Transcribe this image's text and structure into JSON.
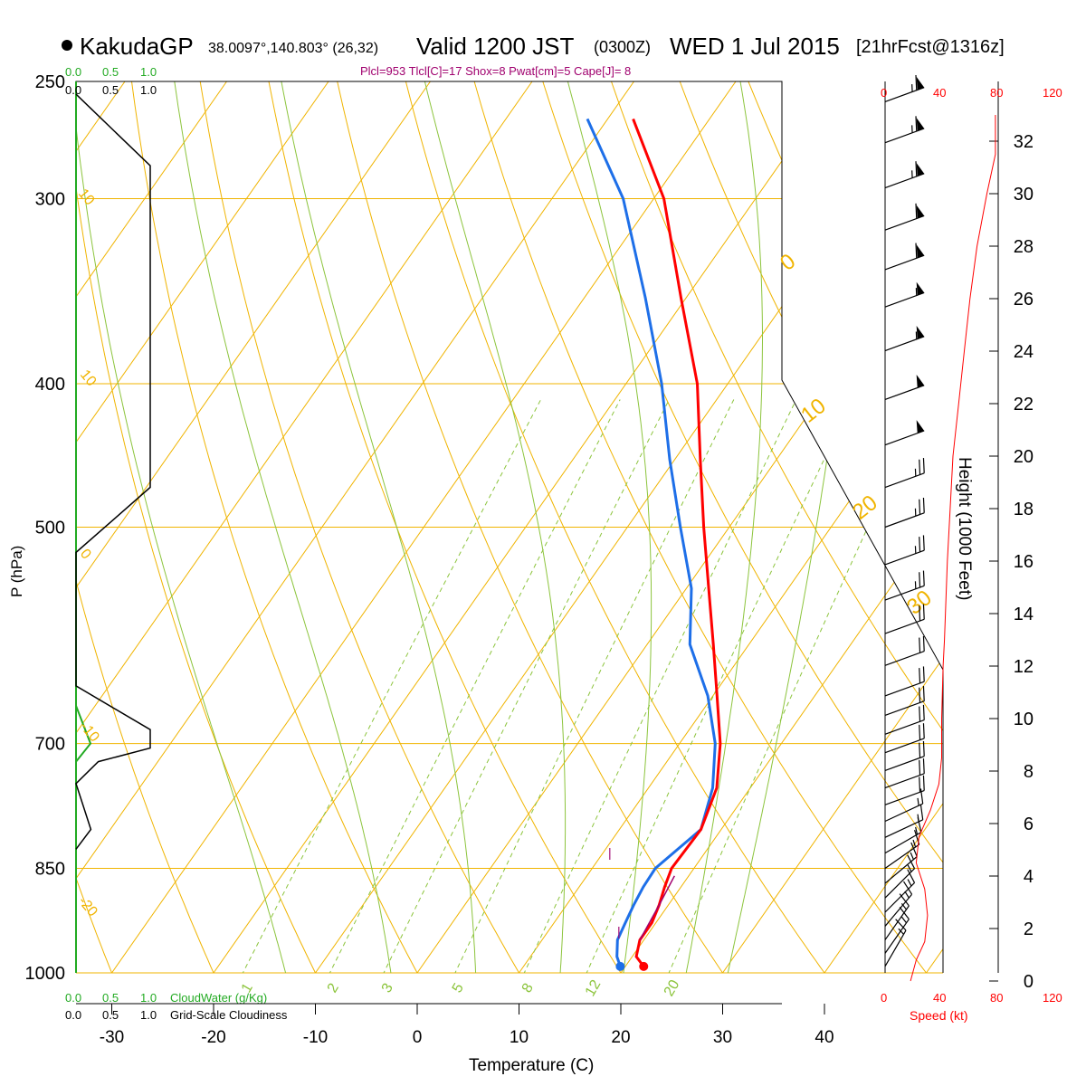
{
  "header": {
    "station": "KakudaGP",
    "location": "38.0097°,140.803° (26,32)",
    "valid": "Valid 1200 JST",
    "zulu": "(0300Z)",
    "date": "WED 1 Jul 2015",
    "forecast": "[21hrFcst@1316z]",
    "indices": "Plcl=953 Tlcl[C]=17 Shox=8 Pwat[cm]=5 Cape[J]= 8"
  },
  "colors": {
    "temperature": "#ff0000",
    "dewpoint": "#1e6fe8",
    "parcel": "#a0006e",
    "isotherm": "#f0b400",
    "dry_adiabat": "#f0b400",
    "moist_adiabat": "#8cc43c",
    "mixing_ratio": "#8cc43c",
    "cloud_water": "#22aa22",
    "cloudiness": "#000000",
    "wind_speed": "#ff0000",
    "indices_text": "#a0006e"
  },
  "chart_data": {
    "type": "skew-t",
    "xlabel": "Temperature (C)",
    "ylabel": "P (hPa)",
    "right_label": "Height (1000 Feet)",
    "x_ticks": [
      -30,
      -20,
      -10,
      0,
      10,
      20,
      30,
      40
    ],
    "p_ticks": [
      250,
      300,
      400,
      500,
      700,
      850,
      1000
    ],
    "height_ticks": [
      0,
      2,
      4,
      6,
      8,
      10,
      12,
      14,
      16,
      18,
      20,
      22,
      24,
      26,
      28,
      30,
      32
    ],
    "pressure_range": [
      250,
      1000
    ],
    "speed_ticks": [
      "0",
      "40",
      "80",
      "120"
    ],
    "speed_label": "Speed (kt)",
    "cloud_ticks": [
      "0.0",
      "0.5",
      "1.0"
    ],
    "cloud_water_label": "CloudWater (g/Kg)",
    "cloudiness_label": "Grid-Scale Cloudiness",
    "isotherm_labels": [
      "10",
      "0",
      "-10",
      "-20",
      "-30"
    ],
    "theta_labels": [
      "0",
      "10",
      "20",
      "30"
    ],
    "mixing_ratio_labels": [
      "1",
      "2",
      "3",
      "5",
      "8",
      "12",
      "20"
    ],
    "temperature": [
      {
        "p": 990,
        "t": 21.8
      },
      {
        "p": 975,
        "t": 20.4
      },
      {
        "p": 950,
        "t": 19.6
      },
      {
        "p": 925,
        "t": 19.6
      },
      {
        "p": 900,
        "t": 19.1
      },
      {
        "p": 875,
        "t": 18.4
      },
      {
        "p": 850,
        "t": 17.8
      },
      {
        "p": 800,
        "t": 18.0
      },
      {
        "p": 750,
        "t": 16.7
      },
      {
        "p": 700,
        "t": 14.0
      },
      {
        "p": 650,
        "t": 10.4
      },
      {
        "p": 600,
        "t": 6.5
      },
      {
        "p": 550,
        "t": 2.2
      },
      {
        "p": 500,
        "t": -2.5
      },
      {
        "p": 450,
        "t": -7.5
      },
      {
        "p": 400,
        "t": -13.0
      },
      {
        "p": 350,
        "t": -20.5
      },
      {
        "p": 300,
        "t": -29.0
      },
      {
        "p": 265,
        "t": -37.5
      }
    ],
    "dewpoint": [
      {
        "p": 990,
        "t": 19.5
      },
      {
        "p": 975,
        "t": 18.5
      },
      {
        "p": 950,
        "t": 17.4
      },
      {
        "p": 925,
        "t": 17.0
      },
      {
        "p": 900,
        "t": 16.6
      },
      {
        "p": 875,
        "t": 16.3
      },
      {
        "p": 850,
        "t": 16.2
      },
      {
        "p": 800,
        "t": 18.0
      },
      {
        "p": 750,
        "t": 16.3
      },
      {
        "p": 700,
        "t": 13.5
      },
      {
        "p": 650,
        "t": 9.5
      },
      {
        "p": 600,
        "t": 4.2
      },
      {
        "p": 550,
        "t": 0.5
      },
      {
        "p": 500,
        "t": -4.8
      },
      {
        "p": 450,
        "t": -10.5
      },
      {
        "p": 400,
        "t": -16.5
      },
      {
        "p": 350,
        "t": -24.0
      },
      {
        "p": 300,
        "t": -33.0
      },
      {
        "p": 265,
        "t": -42.0
      }
    ],
    "parcel": [
      {
        "p": 950,
        "t": 19.6
      },
      {
        "p": 900,
        "t": 19.1
      },
      {
        "p": 860,
        "t": 18.6
      }
    ],
    "wind_speed": [
      {
        "z": 0,
        "v": 18
      },
      {
        "z": 0.8,
        "v": 22
      },
      {
        "z": 1.5,
        "v": 28
      },
      {
        "z": 2.5,
        "v": 30
      },
      {
        "z": 3.5,
        "v": 28
      },
      {
        "z": 4.5,
        "v": 22
      },
      {
        "z": 5.5,
        "v": 24
      },
      {
        "z": 6.5,
        "v": 32
      },
      {
        "z": 7.5,
        "v": 38
      },
      {
        "z": 8.5,
        "v": 40
      },
      {
        "z": 10,
        "v": 40
      },
      {
        "z": 12,
        "v": 41
      },
      {
        "z": 13,
        "v": 42
      },
      {
        "z": 16,
        "v": 44
      },
      {
        "z": 18,
        "v": 46
      },
      {
        "z": 20,
        "v": 48
      },
      {
        "z": 22,
        "v": 52
      },
      {
        "z": 24,
        "v": 56
      },
      {
        "z": 26,
        "v": 60
      },
      {
        "z": 28,
        "v": 65
      },
      {
        "z": 30,
        "v": 72
      },
      {
        "z": 31.5,
        "v": 78
      },
      {
        "z": 33,
        "v": 78
      }
    ],
    "wind_barbs": [
      {
        "p": 990,
        "dir": 210,
        "spd": 15
      },
      {
        "p": 970,
        "dir": 215,
        "spd": 15
      },
      {
        "p": 950,
        "dir": 215,
        "spd": 15
      },
      {
        "p": 930,
        "dir": 220,
        "spd": 15
      },
      {
        "p": 910,
        "dir": 225,
        "spd": 15
      },
      {
        "p": 890,
        "dir": 225,
        "spd": 15
      },
      {
        "p": 870,
        "dir": 230,
        "spd": 15
      },
      {
        "p": 850,
        "dir": 235,
        "spd": 15
      },
      {
        "p": 830,
        "dir": 240,
        "spd": 15
      },
      {
        "p": 810,
        "dir": 245,
        "spd": 15
      },
      {
        "p": 790,
        "dir": 245,
        "spd": 15
      },
      {
        "p": 770,
        "dir": 250,
        "spd": 20
      },
      {
        "p": 750,
        "dir": 250,
        "spd": 20
      },
      {
        "p": 730,
        "dir": 250,
        "spd": 20
      },
      {
        "p": 710,
        "dir": 250,
        "spd": 20
      },
      {
        "p": 690,
        "dir": 250,
        "spd": 20
      },
      {
        "p": 670,
        "dir": 250,
        "spd": 20
      },
      {
        "p": 650,
        "dir": 250,
        "spd": 20
      },
      {
        "p": 620,
        "dir": 250,
        "spd": 20
      },
      {
        "p": 590,
        "dir": 250,
        "spd": 20
      },
      {
        "p": 560,
        "dir": 250,
        "spd": 25
      },
      {
        "p": 530,
        "dir": 250,
        "spd": 25
      },
      {
        "p": 500,
        "dir": 250,
        "spd": 25
      },
      {
        "p": 470,
        "dir": 250,
        "spd": 25
      },
      {
        "p": 440,
        "dir": 250,
        "spd": 50
      },
      {
        "p": 410,
        "dir": 250,
        "spd": 50
      },
      {
        "p": 380,
        "dir": 250,
        "spd": 55
      },
      {
        "p": 355,
        "dir": 250,
        "spd": 55
      },
      {
        "p": 335,
        "dir": 250,
        "spd": 60
      },
      {
        "p": 315,
        "dir": 250,
        "spd": 60
      },
      {
        "p": 295,
        "dir": 250,
        "spd": 65
      },
      {
        "p": 275,
        "dir": 250,
        "spd": 65
      },
      {
        "p": 258,
        "dir": 250,
        "spd": 65
      }
    ],
    "cloudiness": [
      {
        "p": 255,
        "c": 0.0
      },
      {
        "p": 285,
        "c": 1.0
      },
      {
        "p": 470,
        "c": 1.0
      },
      {
        "p": 520,
        "c": 0.0
      },
      {
        "p": 640,
        "c": 0.0
      },
      {
        "p": 685,
        "c": 1.0
      },
      {
        "p": 705,
        "c": 1.0
      },
      {
        "p": 720,
        "c": 0.3
      },
      {
        "p": 745,
        "c": 0.0
      },
      {
        "p": 800,
        "c": 0.2
      },
      {
        "p": 825,
        "c": 0.0
      }
    ],
    "cloud_water": [
      {
        "p": 660,
        "w": 0.0
      },
      {
        "p": 700,
        "w": 0.2
      },
      {
        "p": 720,
        "w": 0.0
      }
    ],
    "parcel_marks": [
      "|",
      "|"
    ]
  }
}
